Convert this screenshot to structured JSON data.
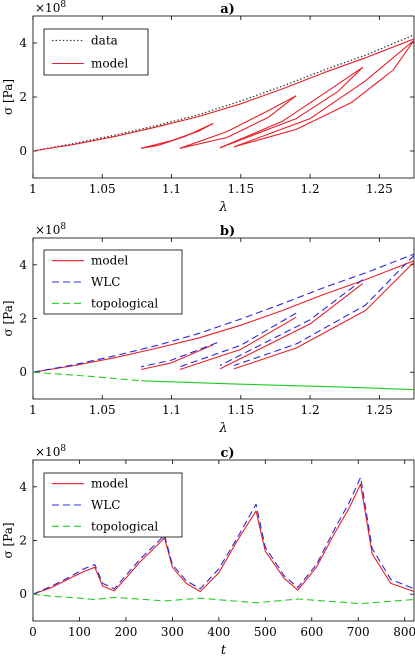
{
  "chart_data": [
    {
      "type": "line",
      "title": "a)",
      "xlabel": "λ",
      "ylabel": "σ [Pa]",
      "exponent": "×10",
      "exponent_power": "8",
      "xlim": [
        1.0,
        1.275
      ],
      "ylim": [
        -1.0,
        5.0
      ],
      "xticks": [
        "1",
        "1.05",
        "1.1",
        "1.15",
        "1.2",
        "1.25"
      ],
      "xtick_values": [
        1.0,
        1.05,
        1.1,
        1.15,
        1.2,
        1.25
      ],
      "yticks": [
        "0",
        "2",
        "4"
      ],
      "ytick_values": [
        0,
        2,
        4
      ],
      "legend": {
        "placement": "top-left",
        "entries": [
          {
            "label": "data",
            "style": "dotted"
          },
          {
            "label": "model",
            "style": "solid"
          }
        ]
      },
      "series": [
        {
          "name": "data",
          "color": "#333333",
          "dash": "dotted",
          "x": [
            1.0,
            1.03,
            1.06,
            1.09,
            1.12,
            1.15,
            1.18,
            1.21,
            1.24,
            1.275
          ],
          "y": [
            0.0,
            0.28,
            0.6,
            0.95,
            1.35,
            1.85,
            2.4,
            3.0,
            3.55,
            4.3
          ]
        },
        {
          "name": "model",
          "color": "#e8202a",
          "dash": "solid",
          "x": [
            1.0,
            1.03,
            1.06,
            1.09,
            1.12,
            1.15,
            1.18,
            1.21,
            1.24,
            1.275
          ],
          "y": [
            0.0,
            0.25,
            0.55,
            0.9,
            1.28,
            1.75,
            2.3,
            2.9,
            3.45,
            4.15
          ]
        },
        {
          "name": "",
          "color": "#e8202a",
          "dash": "solid",
          "x": [
            1.13,
            1.11,
            1.09,
            1.078
          ],
          "y": [
            1.02,
            0.55,
            0.2,
            0.1
          ]
        },
        {
          "name": "",
          "color": "#e8202a",
          "dash": "solid",
          "x": [
            1.078,
            1.1,
            1.12,
            1.13
          ],
          "y": [
            0.1,
            0.38,
            0.75,
            1.02
          ]
        },
        {
          "name": "",
          "color": "#e8202a",
          "dash": "solid",
          "x": [
            1.19,
            1.17,
            1.14,
            1.106
          ],
          "y": [
            2.05,
            1.25,
            0.5,
            0.1
          ]
        },
        {
          "name": "",
          "color": "#e8202a",
          "dash": "solid",
          "x": [
            1.106,
            1.14,
            1.17,
            1.19
          ],
          "y": [
            0.1,
            0.72,
            1.5,
            2.05
          ]
        },
        {
          "name": "",
          "color": "#e8202a",
          "dash": "solid",
          "x": [
            1.238,
            1.22,
            1.19,
            1.135
          ],
          "y": [
            3.1,
            2.2,
            1.2,
            0.12
          ]
        },
        {
          "name": "",
          "color": "#e8202a",
          "dash": "solid",
          "x": [
            1.135,
            1.18,
            1.215,
            1.238
          ],
          "y": [
            0.12,
            1.1,
            2.3,
            3.1
          ]
        },
        {
          "name": "",
          "color": "#e8202a",
          "dash": "solid",
          "x": [
            1.275,
            1.26,
            1.23,
            1.19,
            1.145
          ],
          "y": [
            4.1,
            3.0,
            1.8,
            0.8,
            0.15
          ]
        },
        {
          "name": "",
          "color": "#e8202a",
          "dash": "solid",
          "x": [
            1.145,
            1.2,
            1.24,
            1.275
          ],
          "y": [
            0.15,
            1.2,
            2.6,
            4.1
          ]
        }
      ]
    },
    {
      "type": "line",
      "title": "b)",
      "xlabel": "λ",
      "ylabel": "σ [Pa]",
      "exponent": "×10",
      "exponent_power": "8",
      "xlim": [
        1.0,
        1.275
      ],
      "ylim": [
        -1.0,
        5.0
      ],
      "xticks": [
        "1",
        "1.05",
        "1.1",
        "1.15",
        "1.2",
        "1.25"
      ],
      "xtick_values": [
        1.0,
        1.05,
        1.1,
        1.15,
        1.2,
        1.25
      ],
      "yticks": [
        "0",
        "2",
        "4"
      ],
      "ytick_values": [
        0,
        2,
        4
      ],
      "legend": {
        "placement": "top-left",
        "entries": [
          {
            "label": "model",
            "style": "solid"
          },
          {
            "label": "WLC",
            "style": "dashed"
          },
          {
            "label": "topological",
            "style": "dashed"
          }
        ]
      },
      "series": [
        {
          "name": "model",
          "color": "#e8202a",
          "dash": "solid",
          "x": [
            1.0,
            1.03,
            1.06,
            1.09,
            1.12,
            1.15,
            1.18,
            1.21,
            1.24,
            1.275
          ],
          "y": [
            0.0,
            0.25,
            0.55,
            0.9,
            1.28,
            1.75,
            2.3,
            2.9,
            3.45,
            4.15
          ]
        },
        {
          "name": "WLC",
          "color": "#2a2ad8",
          "dash": "dashed",
          "x": [
            1.0,
            1.03,
            1.06,
            1.09,
            1.12,
            1.15,
            1.18,
            1.21,
            1.24,
            1.275
          ],
          "y": [
            0.0,
            0.28,
            0.62,
            1.0,
            1.45,
            1.98,
            2.55,
            3.15,
            3.7,
            4.4
          ]
        },
        {
          "name": "topological",
          "color": "#22cc22",
          "dash": "dashed",
          "x": [
            1.0,
            1.04,
            1.078
          ],
          "y": [
            0.0,
            -0.15,
            -0.32
          ]
        },
        {
          "name": "",
          "color": "#22cc22",
          "dash": "solid",
          "x": [
            1.078,
            1.15,
            1.22,
            1.275
          ],
          "y": [
            -0.32,
            -0.45,
            -0.55,
            -0.65
          ]
        },
        {
          "name": "",
          "color": "#e8202a",
          "dash": "solid",
          "x": [
            1.13,
            1.1,
            1.078
          ],
          "y": [
            1.02,
            0.35,
            0.1
          ]
        },
        {
          "name": "",
          "color": "#2a2ad8",
          "dash": "dashed",
          "x": [
            1.133,
            1.1,
            1.078
          ],
          "y": [
            1.1,
            0.45,
            0.2
          ]
        },
        {
          "name": "",
          "color": "#e8202a",
          "dash": "solid",
          "x": [
            1.19,
            1.15,
            1.106
          ],
          "y": [
            2.05,
            0.85,
            0.1
          ]
        },
        {
          "name": "",
          "color": "#2a2ad8",
          "dash": "dashed",
          "x": [
            1.19,
            1.15,
            1.106
          ],
          "y": [
            2.2,
            1.0,
            0.2
          ]
        },
        {
          "name": "",
          "color": "#e8202a",
          "dash": "solid",
          "x": [
            1.238,
            1.2,
            1.135
          ],
          "y": [
            3.3,
            1.8,
            0.12
          ]
        },
        {
          "name": "",
          "color": "#2a2ad8",
          "dash": "dashed",
          "x": [
            1.238,
            1.2,
            1.135
          ],
          "y": [
            3.45,
            1.95,
            0.25
          ]
        },
        {
          "name": "",
          "color": "#e8202a",
          "dash": "solid",
          "x": [
            1.275,
            1.24,
            1.19,
            1.145
          ],
          "y": [
            4.1,
            2.3,
            0.9,
            0.12
          ]
        },
        {
          "name": "",
          "color": "#2a2ad8",
          "dash": "dashed",
          "x": [
            1.275,
            1.24,
            1.19,
            1.145
          ],
          "y": [
            4.35,
            2.5,
            1.05,
            0.25
          ]
        }
      ]
    },
    {
      "type": "line",
      "title": "c)",
      "xlabel": "t",
      "ylabel": "σ [Pa]",
      "exponent": "×10",
      "exponent_power": "8",
      "xlim": [
        0,
        820
      ],
      "ylim": [
        -1.0,
        5.0
      ],
      "xticks": [
        "0",
        "100",
        "200",
        "300",
        "400",
        "500",
        "600",
        "700",
        "800"
      ],
      "xtick_values": [
        0,
        100,
        200,
        300,
        400,
        500,
        600,
        700,
        800
      ],
      "yticks": [
        "0",
        "2",
        "4"
      ],
      "ytick_values": [
        0,
        2,
        4
      ],
      "legend": {
        "placement": "top-left",
        "entries": [
          {
            "label": "model",
            "style": "solid"
          },
          {
            "label": "WLC",
            "style": "dashed"
          },
          {
            "label": "topological",
            "style": "dashed"
          }
        ]
      },
      "series": [
        {
          "name": "model",
          "color": "#e8202a",
          "dash": "solid",
          "x": [
            0,
            40,
            80,
            110,
            133,
            150,
            175,
            200,
            230,
            260,
            283,
            300,
            330,
            360,
            400,
            440,
            480,
            500,
            540,
            570,
            610,
            650,
            680,
            705,
            730,
            770,
            820
          ],
          "y": [
            0.0,
            0.25,
            0.6,
            0.85,
            1.0,
            0.3,
            0.12,
            0.6,
            1.2,
            1.7,
            2.1,
            1.0,
            0.4,
            0.1,
            0.8,
            2.0,
            3.1,
            1.6,
            0.6,
            0.15,
            1.0,
            2.3,
            3.2,
            4.1,
            1.5,
            0.4,
            0.1
          ]
        },
        {
          "name": "WLC",
          "color": "#2a2ad8",
          "dash": "dashed",
          "x": [
            0,
            40,
            80,
            110,
            133,
            150,
            175,
            200,
            230,
            260,
            283,
            300,
            330,
            360,
            400,
            440,
            480,
            500,
            540,
            570,
            610,
            650,
            680,
            705,
            730,
            770,
            820
          ],
          "y": [
            0.0,
            0.3,
            0.65,
            0.95,
            1.1,
            0.4,
            0.2,
            0.7,
            1.3,
            1.8,
            2.2,
            1.1,
            0.5,
            0.2,
            0.95,
            2.1,
            3.35,
            1.75,
            0.7,
            0.25,
            1.1,
            2.45,
            3.4,
            4.35,
            1.7,
            0.55,
            0.2
          ]
        },
        {
          "name": "topological",
          "color": "#22cc22",
          "dash": "dashed",
          "x": [
            0,
            40,
            80,
            133,
            175,
            283,
            360,
            480,
            570,
            705,
            820
          ],
          "y": [
            0.0,
            -0.08,
            -0.12,
            -0.2,
            -0.12,
            -0.25,
            -0.15,
            -0.32,
            -0.18,
            -0.35,
            -0.2
          ]
        }
      ]
    }
  ]
}
